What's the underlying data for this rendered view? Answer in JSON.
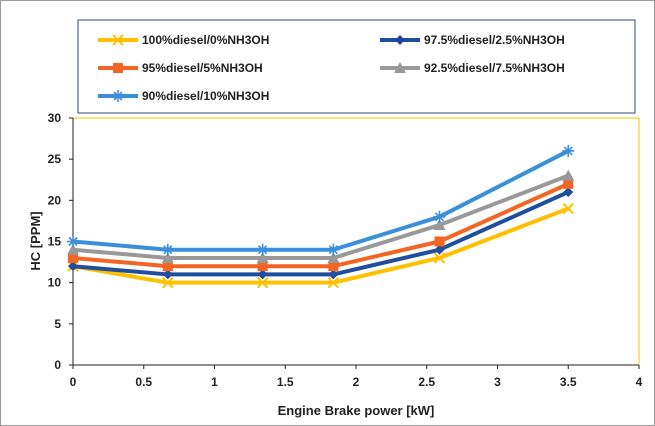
{
  "chart_data": {
    "type": "line",
    "xlabel": "Engine Brake power [kW]",
    "ylabel": "HC [PPM]",
    "xlim": [
      0,
      4
    ],
    "ylim": [
      0,
      30
    ],
    "xticks": [
      0,
      0.5,
      1,
      1.5,
      2,
      2.5,
      3,
      3.5,
      4
    ],
    "xtick_labels": [
      "0",
      "0.5",
      "1",
      "1.5",
      "2",
      "2.5",
      "3",
      "3.5",
      "4"
    ],
    "yticks": [
      0,
      5,
      10,
      15,
      20,
      25,
      30
    ],
    "ytick_labels": [
      "0",
      "5",
      "10",
      "15",
      "20",
      "25",
      "30"
    ],
    "grid": false,
    "legend_position": "top",
    "x": [
      0,
      0.67,
      1.34,
      1.84,
      2.59,
      3.5
    ],
    "series": [
      {
        "name": "100%diesel/0%NH3OH",
        "color": "#FFC000",
        "marker": "x",
        "values": [
          12,
          10,
          10,
          10,
          13,
          19
        ]
      },
      {
        "name": "97.5%diesel/2.5%NH3OH",
        "color": "#1F4E9E",
        "marker": "diamond",
        "values": [
          12,
          11,
          11,
          11,
          14,
          21
        ]
      },
      {
        "name": "95%diesel/5%NH3OH",
        "color": "#F26522",
        "marker": "square",
        "values": [
          13,
          12,
          12,
          12,
          15,
          22
        ]
      },
      {
        "name": "92.5%diesel/7.5%NH3OH",
        "color": "#999999",
        "marker": "triangle",
        "values": [
          14,
          13,
          13,
          13,
          17,
          23
        ]
      },
      {
        "name": "90%diesel/10%NH3OH",
        "color": "#3A8FDB",
        "marker": "star",
        "values": [
          15,
          14,
          14,
          14,
          18,
          26
        ]
      }
    ]
  }
}
